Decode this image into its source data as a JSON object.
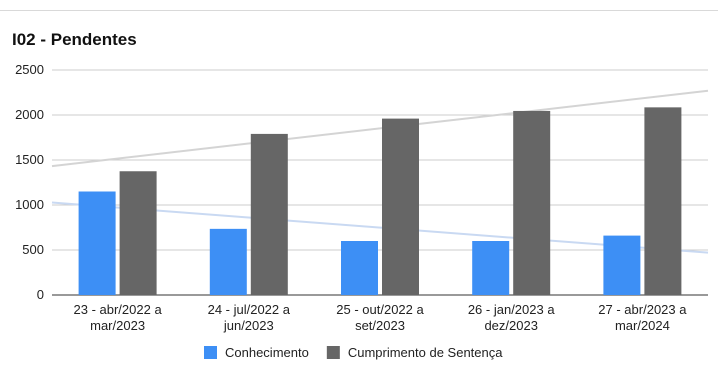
{
  "chart_data": {
    "type": "bar",
    "title": "I02 - Pendentes",
    "categories": [
      [
        "23 - abr/2022 a",
        "mar/2023"
      ],
      [
        "24 - jul/2022 a",
        "jun/2023"
      ],
      [
        "25 - out/2022 a",
        "set/2023"
      ],
      [
        "26 - jan/2023 a",
        "dez/2023"
      ],
      [
        "27 - abr/2023 a",
        "mar/2024"
      ]
    ],
    "series": [
      {
        "name": "Conhecimento",
        "color": "#3d8ff5",
        "values": [
          1150,
          735,
          600,
          600,
          660
        ]
      },
      {
        "name": "Cumprimento de Sentença",
        "color": "#666666",
        "values": [
          1375,
          1790,
          1960,
          2045,
          2085
        ]
      }
    ],
    "trendlines": [
      {
        "series": "Conhecimento",
        "color": "#c9d9f2"
      },
      {
        "series": "Cumprimento de Sentença",
        "color": "#d4d4d4"
      }
    ],
    "ylim": [
      0,
      2500
    ],
    "yticks": [
      0,
      500,
      1000,
      1500,
      2000,
      2500
    ],
    "xlabel": "",
    "ylabel": "",
    "grid": true,
    "legend": "bottom"
  }
}
